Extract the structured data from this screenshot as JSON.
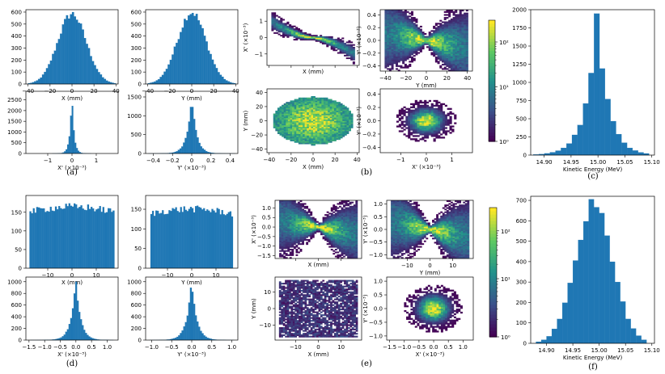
{
  "colors": {
    "bar": "#1f77b4",
    "axis": "#000000",
    "viridis": [
      "#440154",
      "#3b528b",
      "#21918c",
      "#5ec962",
      "#fde725"
    ]
  },
  "captions": [
    "(a)",
    "(b)",
    "(c)",
    "(d)",
    "(e)",
    "(f)"
  ],
  "chart_data": [
    {
      "id": "a1",
      "panel": "(a)",
      "type": "bar",
      "xlabel": "X (mm)",
      "ylabel": "",
      "xlim": [
        -42,
        42
      ],
      "ylim": [
        0,
        620
      ],
      "xticks": [
        -40,
        -20,
        0,
        20,
        40
      ],
      "yticks": [
        0,
        100,
        200,
        300,
        400,
        500,
        600
      ],
      "ytick_labels": [
        "0",
        "100",
        "200",
        "300",
        "400",
        "500",
        "600"
      ],
      "dist": {
        "kind": "gauss",
        "mu": 0,
        "sigma": 13,
        "peak": 585,
        "lo": -40,
        "hi": 40,
        "bins": 44
      }
    },
    {
      "id": "a2",
      "panel": "(a)",
      "type": "bar",
      "xlabel": "Y (mm)",
      "ylabel": "",
      "xlim": [
        -42,
        42
      ],
      "ylim": [
        0,
        620
      ],
      "xticks": [
        -40,
        -20,
        0,
        20,
        40
      ],
      "yticks": [
        0,
        100,
        200,
        300,
        400,
        500,
        600
      ],
      "ytick_labels": [
        "0",
        "100",
        "200",
        "300",
        "400",
        "500",
        "600"
      ],
      "dist": {
        "kind": "gauss",
        "mu": 0,
        "sigma": 13,
        "peak": 600,
        "lo": -40,
        "hi": 40,
        "bins": 44
      }
    },
    {
      "id": "a3",
      "panel": "(a)",
      "type": "bar",
      "xlabel": "X' (×10⁻³)",
      "ylabel": "",
      "xlim": [
        -1.9,
        1.9
      ],
      "ylim": [
        0,
        2900
      ],
      "xticks": [
        -1,
        0,
        1
      ],
      "yticks": [
        0,
        500,
        1000,
        1500,
        2000,
        2500
      ],
      "ytick_labels": [
        "0",
        "500",
        "1000",
        "1500",
        "2000",
        "2500"
      ],
      "dist": {
        "kind": "lap",
        "mu": 0,
        "sigma": 0.09,
        "peak": 2800,
        "lo": -1.5,
        "hi": 1.6,
        "bins": 50
      }
    },
    {
      "id": "a4",
      "panel": "(a)",
      "type": "bar",
      "xlabel": "Y' (×10⁻³)",
      "ylabel": "",
      "xlim": [
        -0.48,
        0.48
      ],
      "ylim": [
        0,
        1650
      ],
      "xticks": [
        -0.4,
        -0.2,
        0,
        0.2,
        0.4
      ],
      "yticks": [
        0,
        500,
        1000,
        1500
      ],
      "ytick_labels": [
        "0",
        "500",
        "1000",
        "1500"
      ],
      "dist": {
        "kind": "lap",
        "mu": 0,
        "sigma": 0.05,
        "peak": 1560,
        "lo": -0.45,
        "hi": 0.45,
        "bins": 50
      }
    },
    {
      "id": "b1",
      "panel": "(b)",
      "type": "heatmap",
      "xlabel": "X (mm)",
      "ylabel": "X' (×10⁻³)",
      "xlim": [
        -42,
        42
      ],
      "ylim": [
        -1.7,
        1.7
      ],
      "xticks": [
        -40,
        -20,
        0,
        20,
        40
      ],
      "xtick_labels": [
        "",
        "",
        "",
        "",
        ""
      ],
      "yticks": [
        -1,
        0,
        1
      ],
      "ytick_labels": [
        "−1",
        "0",
        "1"
      ],
      "cloud": {
        "shape": "s",
        "a": 1.0,
        "xr": 38,
        "spread": 0.18,
        "n": 42
      }
    },
    {
      "id": "b2",
      "panel": "(b)",
      "type": "heatmap",
      "xlabel": "Y (mm)",
      "ylabel": "Y' (×10⁻³)",
      "xlim": [
        -45,
        45
      ],
      "ylim": [
        -0.48,
        0.48
      ],
      "xticks": [
        -40,
        -20,
        0,
        20,
        40
      ],
      "yticks": [
        -0.4,
        -0.2,
        0,
        0.2,
        0.4
      ],
      "ytick_labels": [
        "−0.4",
        "−0.2",
        "0.0",
        "0.2",
        "0.4"
      ],
      "cloud": {
        "shape": "bow",
        "a": 0.3,
        "xr": 40,
        "spread": 0.12,
        "n": 42
      }
    },
    {
      "id": "b3",
      "panel": "(b)",
      "type": "heatmap",
      "xlabel": "X (mm)",
      "ylabel": "Y (mm)",
      "xlim": [
        -42,
        42
      ],
      "ylim": [
        -45,
        45
      ],
      "xticks": [
        -40,
        -20,
        0,
        20,
        40
      ],
      "yticks": [
        -40,
        -20,
        0,
        20,
        40
      ],
      "ytick_labels": [
        "−40",
        "−20",
        "0",
        "20",
        "40"
      ],
      "cloud": {
        "shape": "ellipse",
        "rx": 36,
        "ry": 33,
        "n": 44
      }
    },
    {
      "id": "b4",
      "panel": "(b)",
      "type": "heatmap",
      "xlabel": "X' (×10⁻³)",
      "ylabel": "Y' (×10⁻³)",
      "xlim": [
        -1.8,
        1.8
      ],
      "ylim": [
        -0.48,
        0.48
      ],
      "xticks": [
        -1,
        0,
        1
      ],
      "yticks": [
        -0.4,
        -0.2,
        0,
        0.2,
        0.4
      ],
      "ytick_labels": [
        "−0.4",
        "−0.2",
        "0.0",
        "0.2",
        "0.4"
      ],
      "cloud": {
        "shape": "blob",
        "rx": 1.3,
        "ry": 0.35,
        "n": 40
      }
    },
    {
      "id": "b_cbar",
      "panel": "(b)",
      "type": "colorbar",
      "scale": "log",
      "ticks": [
        "10⁰",
        "10¹",
        "10²"
      ],
      "range": [
        1,
        800
      ]
    },
    {
      "id": "c1",
      "panel": "(c)",
      "type": "bar",
      "xlabel": "Kinetic Energy (MeV)",
      "ylabel": "",
      "xlim": [
        14.875,
        15.105
      ],
      "ylim": [
        0,
        2000
      ],
      "xticks": [
        14.9,
        14.95,
        15.0,
        15.05,
        15.1
      ],
      "xtick_labels": [
        "14.90",
        "14.95",
        "15.00",
        "15.05",
        "15.10"
      ],
      "yticks": [
        0,
        250,
        500,
        750,
        1000,
        1250,
        1500,
        1750,
        2000
      ],
      "ytick_labels": [
        "0",
        "250",
        "500",
        "750",
        "1000",
        "1250",
        "1500",
        "1750",
        "2000"
      ],
      "dist": {
        "kind": "lap",
        "mu": 14.998,
        "sigma": 0.022,
        "peak": 1910,
        "lo": 14.88,
        "hi": 15.095,
        "bins": 21
      }
    },
    {
      "id": "d1",
      "panel": "(d)",
      "type": "bar",
      "xlabel": "X (mm)",
      "ylabel": "",
      "xlim": [
        -19,
        19
      ],
      "ylim": [
        0,
        195
      ],
      "xticks": [
        -10,
        0,
        10
      ],
      "yticks": [
        0,
        50,
        100,
        150
      ],
      "ytick_labels": [
        "0",
        "50",
        "100",
        "150"
      ],
      "dist": {
        "kind": "flat",
        "mu": 0,
        "sigma": 17,
        "peak": 175,
        "lo": -17.5,
        "hi": 17.5,
        "bins": 50
      }
    },
    {
      "id": "d2",
      "panel": "(d)",
      "type": "bar",
      "xlabel": "Y (mm)",
      "ylabel": "",
      "xlim": [
        -19,
        19
      ],
      "ylim": [
        0,
        185
      ],
      "xticks": [
        -10,
        0,
        10
      ],
      "yticks": [
        0,
        50,
        100,
        150
      ],
      "ytick_labels": [
        "0",
        "50",
        "100",
        "150"
      ],
      "dist": {
        "kind": "flat",
        "mu": 0,
        "sigma": 17,
        "peak": 160,
        "lo": -17,
        "hi": 17,
        "bins": 50
      }
    },
    {
      "id": "d3",
      "panel": "(d)",
      "type": "bar",
      "xlabel": "X' (×10⁻³)",
      "ylabel": "",
      "xlim": [
        -1.6,
        1.35
      ],
      "ylim": [
        0,
        1080
      ],
      "xticks": [
        -1.5,
        -1.0,
        -0.5,
        0.0,
        0.5,
        1.0
      ],
      "xtick_labels": [
        "−1.5",
        "−1.0",
        "−0.5",
        "0.0",
        "0.5",
        "1.0"
      ],
      "yticks": [
        0,
        200,
        400,
        600,
        800,
        1000
      ],
      "ytick_labels": [
        "0",
        "200",
        "400",
        "600",
        "800",
        "1000"
      ],
      "dist": {
        "kind": "lap",
        "mu": 0,
        "sigma": 0.16,
        "peak": 1030,
        "lo": -1.45,
        "hi": 1.2,
        "bins": 50
      }
    },
    {
      "id": "d4",
      "panel": "(d)",
      "type": "bar",
      "xlabel": "Y' (×10⁻³)",
      "ylabel": "",
      "xlim": [
        -1.15,
        1.15
      ],
      "ylim": [
        0,
        1080
      ],
      "xticks": [
        -1.0,
        -0.5,
        0.0,
        0.5,
        1.0
      ],
      "xtick_labels": [
        "−1.0",
        "−0.5",
        "0.0",
        "0.5",
        "1.0"
      ],
      "yticks": [
        0,
        200,
        400,
        600,
        800,
        1000
      ],
      "ytick_labels": [
        "0",
        "200",
        "400",
        "600",
        "800",
        "1000"
      ],
      "dist": {
        "kind": "lap",
        "mu": 0,
        "sigma": 0.13,
        "peak": 1020,
        "lo": -1.05,
        "hi": 1.05,
        "bins": 50
      }
    },
    {
      "id": "e1",
      "panel": "(e)",
      "type": "heatmap",
      "xlabel": "X (mm)",
      "ylabel": "X' (×10⁻³)",
      "xlim": [
        -19,
        19
      ],
      "ylim": [
        -1.65,
        1.4
      ],
      "xticks": [
        -10,
        0,
        10
      ],
      "xtick_labels": [
        "",
        "",
        ""
      ],
      "yticks": [
        -1.5,
        -1.0,
        -0.5,
        0.0,
        0.5,
        1.0
      ],
      "ytick_labels": [
        "−1.5",
        "−1.0",
        "−0.5",
        "0.0",
        "0.5",
        "1.0"
      ],
      "cloud": {
        "shape": "bow",
        "a": 0.85,
        "xr": 17,
        "spread": 0.45,
        "n": 42
      }
    },
    {
      "id": "e2",
      "panel": "(e)",
      "type": "heatmap",
      "xlabel": "Y (mm)",
      "ylabel": "Y' (×10⁻³)",
      "xlim": [
        -19,
        19
      ],
      "ylim": [
        -1.15,
        1.15
      ],
      "xticks": [
        -10,
        0,
        10
      ],
      "yticks": [
        -1.0,
        -0.5,
        0.0,
        0.5,
        1.0
      ],
      "ytick_labels": [
        "−1.0",
        "−0.5",
        "0.0",
        "0.5",
        "1.0"
      ],
      "cloud": {
        "shape": "bow",
        "a": 0.75,
        "xr": 17,
        "spread": 0.4,
        "n": 42
      }
    },
    {
      "id": "e3",
      "panel": "(e)",
      "type": "heatmap",
      "xlabel": "X (mm)",
      "ylabel": "Y (mm)",
      "xlim": [
        -19,
        19
      ],
      "ylim": [
        -19,
        19
      ],
      "xticks": [
        -10,
        0,
        10
      ],
      "yticks": [
        -10,
        0,
        10
      ],
      "ytick_labels": [
        "−10",
        "0",
        "10"
      ],
      "cloud": {
        "shape": "rect",
        "rx": 17,
        "ry": 17,
        "n": 44
      }
    },
    {
      "id": "e4",
      "panel": "(e)",
      "type": "heatmap",
      "xlabel": "X' (×10⁻³)",
      "ylabel": "Y' (×10⁻³)",
      "xlim": [
        -1.6,
        1.35
      ],
      "ylim": [
        -1.15,
        1.15
      ],
      "xticks": [
        -1.5,
        -1.0,
        -0.5,
        0.0,
        0.5,
        1.0
      ],
      "xtick_labels": [
        "−1.5",
        "−1.0",
        "−0.5",
        "0.0",
        "0.5",
        "1.0"
      ],
      "yticks": [
        -1.0,
        -0.5,
        0.0,
        0.5,
        1.0
      ],
      "ytick_labels": [
        "−1.0",
        "−0.5",
        "0.0",
        "0.5",
        "1.0"
      ],
      "cloud": {
        "shape": "blob",
        "rx": 1.1,
        "ry": 0.95,
        "n": 40
      }
    },
    {
      "id": "e_cbar",
      "panel": "(e)",
      "type": "colorbar",
      "scale": "log",
      "ticks": [
        "10⁰",
        "10¹",
        "10²"
      ],
      "range": [
        1,
        300
      ]
    },
    {
      "id": "f1",
      "panel": "(f)",
      "type": "bar",
      "xlabel": "Kinetic Energy (MeV)",
      "ylabel": "",
      "xlim": [
        14.87,
        15.105
      ],
      "ylim": [
        0,
        720
      ],
      "xticks": [
        14.9,
        14.95,
        15.0,
        15.05,
        15.1
      ],
      "xtick_labels": [
        "14.90",
        "14.95",
        "15.00",
        "15.05",
        "15.10"
      ],
      "yticks": [
        0,
        100,
        200,
        300,
        400,
        500,
        600,
        700
      ],
      "ytick_labels": [
        "0",
        "100",
        "200",
        "300",
        "400",
        "500",
        "600",
        "700"
      ],
      "dist": {
        "kind": "gauss",
        "mu": 14.99,
        "sigma": 0.035,
        "peak": 690,
        "lo": 14.88,
        "hi": 15.09,
        "bins": 21
      }
    }
  ]
}
